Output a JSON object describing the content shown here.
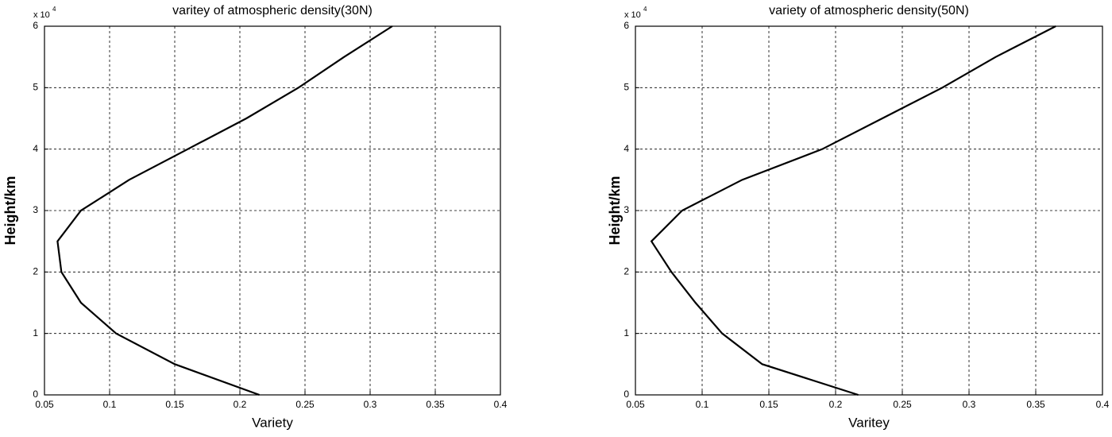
{
  "chart_data": [
    {
      "type": "line",
      "title": "varitey of atmospheric density(30N)",
      "x_label": "Variety",
      "y_label": "Height/km",
      "y_multiplier": "x 10",
      "y_multiplier_exp": "4",
      "x": [
        0.215,
        0.15,
        0.105,
        0.078,
        0.063,
        0.06,
        0.078,
        0.115,
        0.16,
        0.205,
        0.245,
        0.28,
        0.317
      ],
      "values": [
        0,
        5000,
        10000,
        15000,
        20000,
        25000,
        30000,
        35000,
        40000,
        45000,
        50000,
        55000,
        60000
      ],
      "color": "#000000",
      "xlim": [
        0.05,
        0.4
      ],
      "xticks": [
        0.05,
        0.1,
        0.15,
        0.2,
        0.25,
        0.3,
        0.35,
        0.4
      ],
      "ylim": [
        0,
        60000
      ],
      "yticks": [
        {
          "value": 0,
          "label": "0"
        },
        {
          "value": 10000,
          "label": "1"
        },
        {
          "value": 20000,
          "label": "2"
        },
        {
          "value": 30000,
          "label": "3"
        },
        {
          "value": 40000,
          "label": "4"
        },
        {
          "value": 50000,
          "label": "5"
        },
        {
          "value": 60000,
          "label": "6"
        }
      ],
      "grid": true
    },
    {
      "type": "line",
      "title": "variety of atmospheric density(50N)",
      "x_label": "Varitey",
      "y_label": "Height/km",
      "y_multiplier": "x 10",
      "y_multiplier_exp": "4",
      "x": [
        0.217,
        0.145,
        0.115,
        0.095,
        0.077,
        0.062,
        0.085,
        0.13,
        0.19,
        0.235,
        0.28,
        0.32,
        0.365
      ],
      "values": [
        0,
        5000,
        10000,
        15000,
        20000,
        25000,
        30000,
        35000,
        40000,
        45000,
        50000,
        55000,
        60000
      ],
      "color": "#000000",
      "xlim": [
        0.05,
        0.4
      ],
      "xticks": [
        0.05,
        0.1,
        0.15,
        0.2,
        0.25,
        0.3,
        0.35,
        0.4
      ],
      "ylim": [
        0,
        60000
      ],
      "yticks": [
        {
          "value": 0,
          "label": "0"
        },
        {
          "value": 10000,
          "label": "1"
        },
        {
          "value": 20000,
          "label": "2"
        },
        {
          "value": 30000,
          "label": "3"
        },
        {
          "value": 40000,
          "label": "4"
        },
        {
          "value": 50000,
          "label": "5"
        },
        {
          "value": 60000,
          "label": "6"
        }
      ],
      "grid": true
    }
  ]
}
